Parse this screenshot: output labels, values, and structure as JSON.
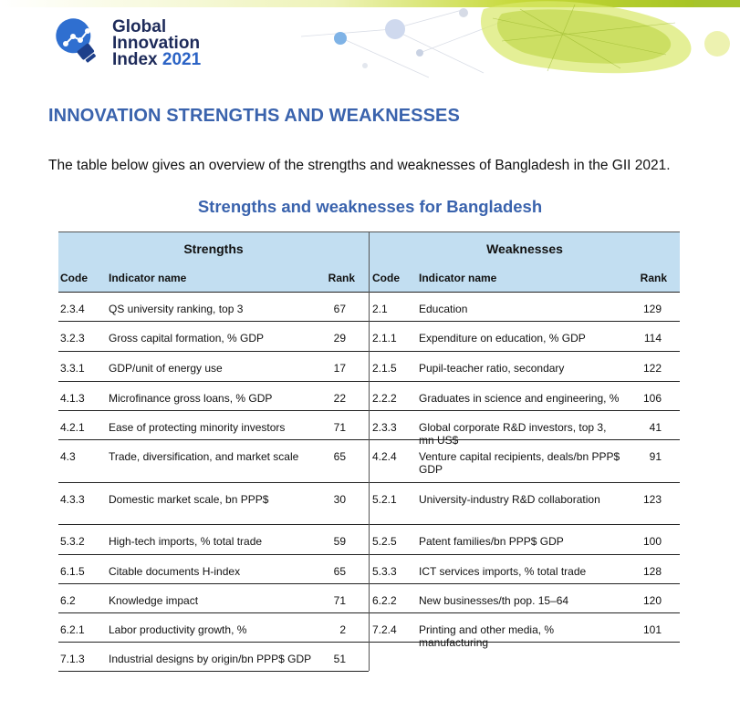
{
  "logo": {
    "line1": "Global",
    "line2": "Innovation",
    "line3a": "Index",
    "line3b": "2021",
    "icon": "lightbulb-network-icon"
  },
  "heading": "INNOVATION STRENGTHS AND WEAKNESSES",
  "intro": "The table below gives an overview of the strengths and weaknesses of Bangladesh in the GII 2021.",
  "table_title": "Strengths and weaknesses for Bangladesh",
  "strengths": {
    "title": "Strengths",
    "col_code": "Code",
    "col_name": "Indicator name",
    "col_rank": "Rank",
    "rows": [
      {
        "code": "2.3.4",
        "name": "QS university ranking, top 3",
        "rank": "67"
      },
      {
        "code": "3.2.3",
        "name": "Gross capital formation, % GDP",
        "rank": "29"
      },
      {
        "code": "3.3.1",
        "name": "GDP/unit of energy use",
        "rank": "17"
      },
      {
        "code": "4.1.3",
        "name": "Microfinance gross loans, % GDP",
        "rank": "22"
      },
      {
        "code": "4.2.1",
        "name": "Ease of protecting minority investors",
        "rank": "71"
      },
      {
        "code": "4.3",
        "name": "Trade, diversification, and market scale",
        "rank": "65"
      },
      {
        "code": "4.3.3",
        "name": "Domestic market scale, bn PPP$",
        "rank": "30"
      },
      {
        "code": "5.3.2",
        "name": "High-tech imports, % total trade",
        "rank": "59"
      },
      {
        "code": "6.1.5",
        "name": "Citable documents H-index",
        "rank": "65"
      },
      {
        "code": "6.2",
        "name": "Knowledge impact",
        "rank": "71"
      },
      {
        "code": "6.2.1",
        "name": "Labor productivity growth, %",
        "rank": "2"
      },
      {
        "code": "7.1.3",
        "name": "Industrial designs by origin/bn PPP$ GDP",
        "rank": "51"
      }
    ]
  },
  "weaknesses": {
    "title": "Weaknesses",
    "col_code": "Code",
    "col_name": "Indicator name",
    "col_rank": "Rank",
    "rows": [
      {
        "code": "2.1",
        "name": "Education",
        "rank": "129"
      },
      {
        "code": "2.1.1",
        "name": "Expenditure on education, % GDP",
        "rank": "114"
      },
      {
        "code": "2.1.5",
        "name": "Pupil-teacher ratio, secondary",
        "rank": "122"
      },
      {
        "code": "2.2.2",
        "name": "Graduates in science and engineering, %",
        "rank": "106"
      },
      {
        "code": "2.3.3",
        "name": "Global corporate R&D investors, top 3, mn US$",
        "rank": "41"
      },
      {
        "code": "4.2.4",
        "name": "Venture capital recipients, deals/bn PPP$ GDP",
        "rank": "91"
      },
      {
        "code": "5.2.1",
        "name": "University-industry R&D collaboration",
        "rank": "123"
      },
      {
        "code": "5.2.5",
        "name": "Patent families/bn PPP$ GDP",
        "rank": "100"
      },
      {
        "code": "5.3.3",
        "name": "ICT services imports, % total trade",
        "rank": "128"
      },
      {
        "code": "6.2.2",
        "name": "New businesses/th pop. 15–64",
        "rank": "120"
      },
      {
        "code": "7.2.4",
        "name": "Printing and other media, % manufacturing",
        "rank": "101"
      }
    ]
  }
}
